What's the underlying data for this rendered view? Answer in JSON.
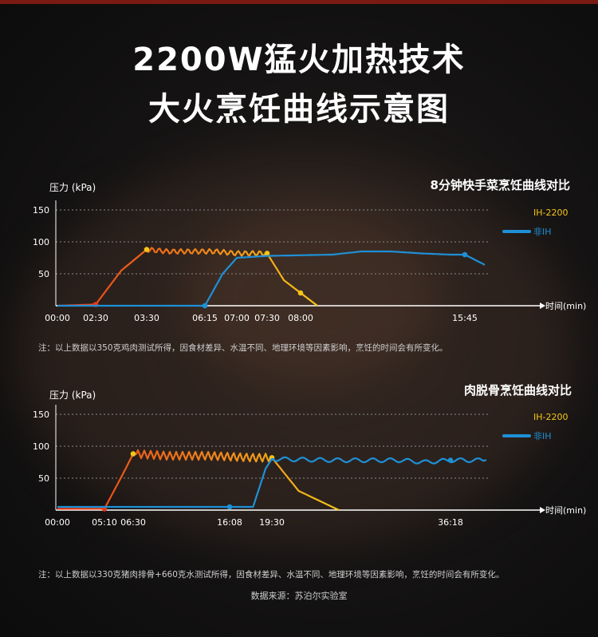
{
  "title_line1": "2200W猛火加热技术",
  "title_line2": "大火烹饪曲线示意图",
  "colors": {
    "ih2200_start": "#e8371c",
    "ih2200_end": "#f5c518",
    "non_ih": "#1e90d6",
    "grid": "#8a8a8a"
  },
  "charts": [
    {
      "id": "chart1",
      "title": "8分钟快手菜烹饪曲线对比",
      "y_label": "压力 (kPa)",
      "x_label": "时间(min)",
      "y_ticks": [
        150,
        100,
        50
      ],
      "x_ticks": [
        "00:00",
        "02:30",
        "03:30",
        "06:15",
        "07:00",
        "07:30",
        "08:00",
        "15:45"
      ],
      "note": "注：以上数据以350克鸡肉测试所得，因食材差异、水温不同、地理环境等因素影响，烹饪的时间会有所变化。"
    },
    {
      "id": "chart2",
      "title": "肉脱骨烹饪曲线对比",
      "y_label": "压力 (kPa)",
      "x_label": "时间(min)",
      "y_ticks": [
        150,
        100,
        50
      ],
      "x_ticks": [
        "00:00",
        "05:10",
        "06:30",
        "16:08",
        "19:30",
        "36:18"
      ],
      "note": "注：以上数据以330克猪肉排骨+660克水测试所得，因食材差异、水温不同、地理环境等因素影响，烹饪的时间会有所变化。"
    }
  ],
  "source": "数据来源：苏泊尔实验室",
  "chart_data": [
    {
      "type": "line",
      "title": "8分钟快手菜烹饪曲线对比",
      "ylabel": "压力 (kPa)",
      "xlabel": "时间(min)",
      "ylim": [
        0,
        150
      ],
      "grid": true,
      "legend": "right",
      "x_tick_labels": [
        "00:00",
        "02:30",
        "03:30",
        "06:15",
        "07:00",
        "07:30",
        "08:00",
        "15:45"
      ],
      "series": [
        {
          "name": "IH-2200",
          "x": [
            "00:00",
            "02:30",
            "03:00",
            "03:30",
            "04:30",
            "05:30",
            "06:30",
            "07:00",
            "07:30",
            "07:45",
            "08:00",
            "08:15"
          ],
          "y": [
            0,
            2,
            55,
            88,
            85,
            85,
            85,
            82,
            82,
            40,
            20,
            0
          ],
          "markers": [
            "02:30",
            "03:30",
            "07:30",
            "08:00"
          ]
        },
        {
          "name": "非IH",
          "x": [
            "00:00",
            "06:15",
            "06:40",
            "07:00",
            "07:30",
            "09:00",
            "10:30",
            "12:00",
            "13:30",
            "15:00",
            "15:45",
            "16:30"
          ],
          "y": [
            0,
            0,
            50,
            75,
            78,
            80,
            85,
            85,
            82,
            80,
            80,
            64
          ],
          "markers": [
            "06:15",
            "15:45"
          ]
        }
      ]
    },
    {
      "type": "line",
      "title": "肉脱骨烹饪曲线对比",
      "ylabel": "压力 (kPa)",
      "xlabel": "时间(min)",
      "ylim": [
        0,
        150
      ],
      "grid": true,
      "legend": "right",
      "x_tick_labels": [
        "00:00",
        "05:10",
        "06:30",
        "16:08",
        "19:30",
        "36:18"
      ],
      "series": [
        {
          "name": "IH-2200",
          "x": [
            "00:00",
            "05:10",
            "06:00",
            "06:30",
            "10:00",
            "14:00",
            "18:00",
            "19:30",
            "20:30",
            "22:00"
          ],
          "y": [
            2,
            2,
            55,
            88,
            85,
            85,
            82,
            82,
            30,
            0
          ],
          "markers": [
            "05:10",
            "06:30",
            "19:30"
          ]
        },
        {
          "name": "非IH",
          "x": [
            "00:00",
            "16:08",
            "18:00",
            "19:00",
            "19:30",
            "22:00",
            "26:00",
            "30:00",
            "33:00",
            "36:18",
            "39:00"
          ],
          "y": [
            5,
            5,
            5,
            65,
            80,
            78,
            78,
            78,
            75,
            78,
            78
          ],
          "markers": [
            "16:08",
            "36:18"
          ]
        }
      ]
    }
  ]
}
